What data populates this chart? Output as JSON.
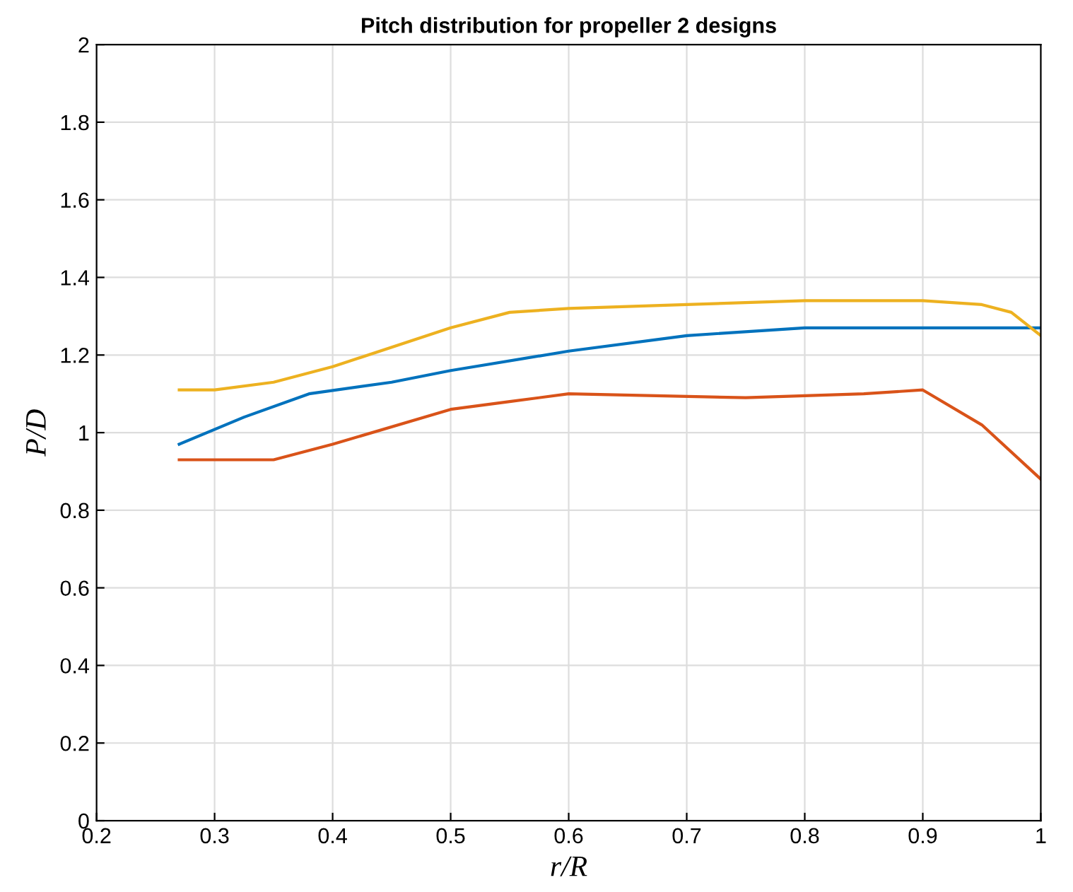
{
  "chart_data": {
    "type": "line",
    "title": "Pitch distribution for propeller 2 designs",
    "xlabel": "r/R",
    "ylabel": "P/D",
    "xlim": [
      0.2,
      1
    ],
    "xticks": [
      0.2,
      0.3,
      0.4,
      0.5,
      0.6,
      0.7,
      0.8,
      0.9,
      1
    ],
    "ylim": [
      0,
      2
    ],
    "yticks": [
      0,
      0.2,
      0.4,
      0.6,
      0.8,
      1,
      1.2,
      1.4,
      1.6,
      1.8,
      2
    ],
    "grid": true,
    "series": [
      {
        "color": "#0072bd",
        "x": [
          0.27,
          0.325,
          0.38,
          0.45,
          0.5,
          0.6,
          0.7,
          0.8,
          0.9,
          1.0
        ],
        "values": [
          0.97,
          1.04,
          1.1,
          1.13,
          1.16,
          1.21,
          1.25,
          1.27,
          1.27,
          1.27
        ]
      },
      {
        "color": "#d95319",
        "x": [
          0.27,
          0.35,
          0.4,
          0.5,
          0.55,
          0.6,
          0.75,
          0.85,
          0.9,
          0.95,
          1.0
        ],
        "values": [
          0.93,
          0.93,
          0.97,
          1.06,
          1.08,
          1.1,
          1.09,
          1.1,
          1.11,
          1.02,
          0.88
        ]
      },
      {
        "color": "#edb120",
        "x": [
          0.27,
          0.3,
          0.35,
          0.4,
          0.5,
          0.55,
          0.6,
          0.7,
          0.8,
          0.85,
          0.9,
          0.95,
          0.975,
          1.0
        ],
        "values": [
          1.11,
          1.11,
          1.13,
          1.17,
          1.27,
          1.31,
          1.32,
          1.33,
          1.34,
          1.34,
          1.34,
          1.33,
          1.31,
          1.25
        ]
      }
    ]
  }
}
